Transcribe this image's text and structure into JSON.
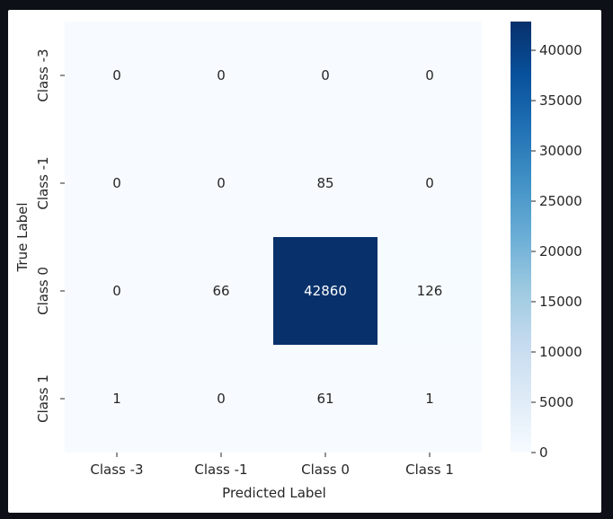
{
  "chart_data": {
    "type": "heatmap",
    "xlabel": "Predicted Label",
    "ylabel": "True Label",
    "x_categories": [
      "Class -3",
      "Class -1",
      "Class 0",
      "Class 1"
    ],
    "y_categories": [
      "Class -3",
      "Class -1",
      "Class 0",
      "Class 1"
    ],
    "matrix": [
      [
        0,
        0,
        0,
        0
      ],
      [
        0,
        0,
        85,
        0
      ],
      [
        0,
        66,
        42860,
        126
      ],
      [
        1,
        0,
        61,
        1
      ]
    ],
    "colormap": "Blues",
    "colorbar": {
      "min": 0,
      "max": 42860,
      "ticks": [
        0,
        5000,
        10000,
        15000,
        20000,
        25000,
        30000,
        35000,
        40000
      ]
    },
    "colors": {
      "low": "#f7fbff",
      "high": "#08306b",
      "dark_text": "#262626",
      "light_text": "#ffffff"
    }
  }
}
